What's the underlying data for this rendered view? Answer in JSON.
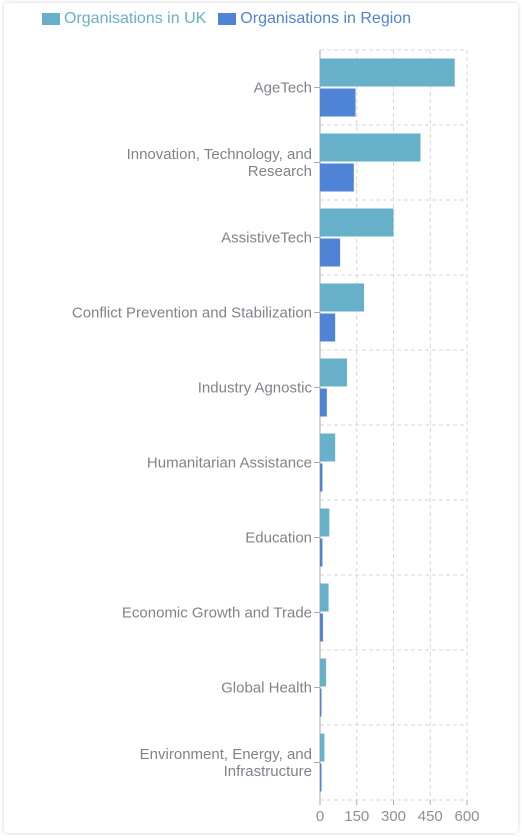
{
  "chart_data": {
    "type": "bar",
    "orientation": "horizontal",
    "categories": [
      [
        "AgeTech"
      ],
      [
        "Innovation, Technology, and",
        "Research"
      ],
      [
        "AssistiveTech"
      ],
      [
        "Conflict Prevention and Stabilization"
      ],
      [
        "Industry Agnostic"
      ],
      [
        "Humanitarian Assistance"
      ],
      [
        "Education"
      ],
      [
        "Economic Growth and Trade"
      ],
      [
        "Global Health"
      ],
      [
        "Environment, Energy, and",
        "Infrastructure"
      ]
    ],
    "series": [
      {
        "name": "Organisations in UK",
        "color": "#67b0c9",
        "values": [
          550,
          410,
          300,
          180,
          110,
          62,
          38,
          35,
          25,
          18
        ]
      },
      {
        "name": "Organisations in Region",
        "color": "#4f83d6",
        "values": [
          145,
          138,
          82,
          62,
          28,
          10,
          10,
          12,
          6,
          4
        ]
      }
    ],
    "xaxis": {
      "ticks": [
        "0",
        "150",
        "300",
        "450",
        "600"
      ],
      "range": [
        0,
        600
      ]
    },
    "grid": true,
    "legend_position": "top-left"
  }
}
